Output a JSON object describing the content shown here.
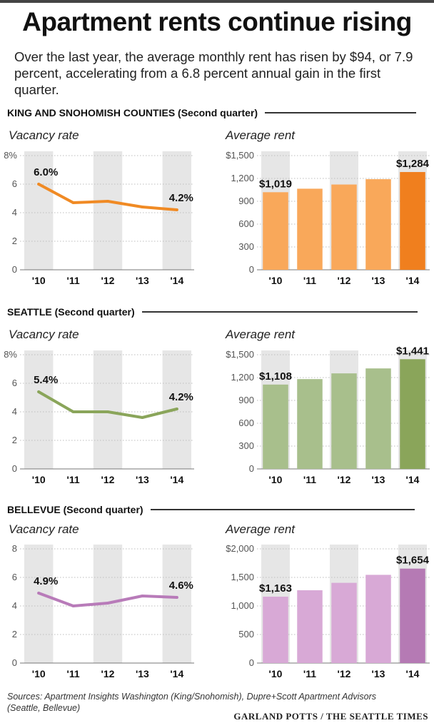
{
  "title": "Apartment rents continue rising",
  "subtitle": "Over the last year, the average monthly rent has risen by $94, or 7.9 percent, accelerating from a 6.8 percent annual gain in the first quarter.",
  "sections": [
    {
      "header": "KING AND SNOHOMISH COUNTIES (Second quarter)",
      "vacancy_title": "Vacancy rate",
      "rent_title": "Average rent"
    },
    {
      "header": "SEATTLE (Second quarter)",
      "vacancy_title": "Vacancy rate",
      "rent_title": "Average rent"
    },
    {
      "header": "BELLEVUE (Second quarter)",
      "vacancy_title": "Vacancy rate",
      "rent_title": "Average rent"
    }
  ],
  "colors": {
    "king_line": "#f08a24",
    "king_bar": "#f9a85a",
    "king_bar_last": "#f07f1e",
    "seattle_line": "#8aa55a",
    "seattle_bar": "#a8bf8c",
    "seattle_bar_last": "#8aa55a",
    "bellevue_line": "#b87bb9",
    "bellevue_bar": "#d8a9d6",
    "bellevue_bar_last": "#b57ab4",
    "band": "#e6e6e6"
  },
  "chart_data": [
    {
      "type": "line",
      "title": "Vacancy rate",
      "section": "KING AND SNOHOMISH COUNTIES (Second quarter)",
      "categories": [
        "'10",
        "'11",
        "'12",
        "'13",
        "'14"
      ],
      "values": [
        6.0,
        4.7,
        4.8,
        4.4,
        4.2
      ],
      "labels": [
        "6.0%",
        "",
        "",
        "",
        "4.2%"
      ],
      "ylim": [
        0,
        8
      ],
      "yticks": [
        "0",
        "2",
        "4",
        "6",
        "8%"
      ]
    },
    {
      "type": "bar",
      "title": "Average rent",
      "section": "KING AND SNOHOMISH COUNTIES (Second quarter)",
      "categories": [
        "'10",
        "'11",
        "'12",
        "'13",
        "'14"
      ],
      "values": [
        1019,
        1065,
        1120,
        1190,
        1284
      ],
      "labels": [
        "$1,019",
        "",
        "",
        "",
        "$1,284"
      ],
      "ylim": [
        0,
        1500
      ],
      "yticks": [
        "0",
        "300",
        "600",
        "900",
        "1,200",
        "$1,500"
      ]
    },
    {
      "type": "line",
      "title": "Vacancy rate",
      "section": "SEATTLE (Second quarter)",
      "categories": [
        "'10",
        "'11",
        "'12",
        "'13",
        "'14"
      ],
      "values": [
        5.4,
        4.0,
        4.0,
        3.6,
        4.2
      ],
      "labels": [
        "5.4%",
        "",
        "",
        "",
        "4.2%"
      ],
      "ylim": [
        0,
        8
      ],
      "yticks": [
        "0",
        "2",
        "4",
        "6",
        "8%"
      ]
    },
    {
      "type": "bar",
      "title": "Average rent",
      "section": "SEATTLE (Second quarter)",
      "categories": [
        "'10",
        "'11",
        "'12",
        "'13",
        "'14"
      ],
      "values": [
        1108,
        1180,
        1255,
        1320,
        1441
      ],
      "labels": [
        "$1,108",
        "",
        "",
        "",
        "$1,441"
      ],
      "ylim": [
        0,
        1500
      ],
      "yticks": [
        "0",
        "300",
        "600",
        "900",
        "1,200",
        "$1,500"
      ]
    },
    {
      "type": "line",
      "title": "Vacancy rate",
      "section": "BELLEVUE (Second quarter)",
      "categories": [
        "'10",
        "'11",
        "'12",
        "'13",
        "'14"
      ],
      "values": [
        4.9,
        4.0,
        4.2,
        4.7,
        4.6
      ],
      "labels": [
        "4.9%",
        "",
        "",
        "",
        "4.6%"
      ],
      "ylim": [
        0,
        8
      ],
      "yticks": [
        "0",
        "2",
        "4",
        "6",
        "8"
      ]
    },
    {
      "type": "bar",
      "title": "Average rent",
      "section": "BELLEVUE (Second quarter)",
      "categories": [
        "'10",
        "'11",
        "'12",
        "'13",
        "'14"
      ],
      "values": [
        1163,
        1275,
        1405,
        1545,
        1654
      ],
      "labels": [
        "$1,163",
        "",
        "",
        "",
        "$1,654"
      ],
      "ylim": [
        0,
        2000
      ],
      "yticks": [
        "0",
        "500",
        "1,000",
        "1,500",
        "$2,000"
      ]
    }
  ],
  "sources": "Sources: Apartment Insights Washington (King/Snohomish), Dupre+Scott Apartment Advisors (Seattle, Bellevue)",
  "credit": "GARLAND POTTS / THE SEATTLE TIMES"
}
